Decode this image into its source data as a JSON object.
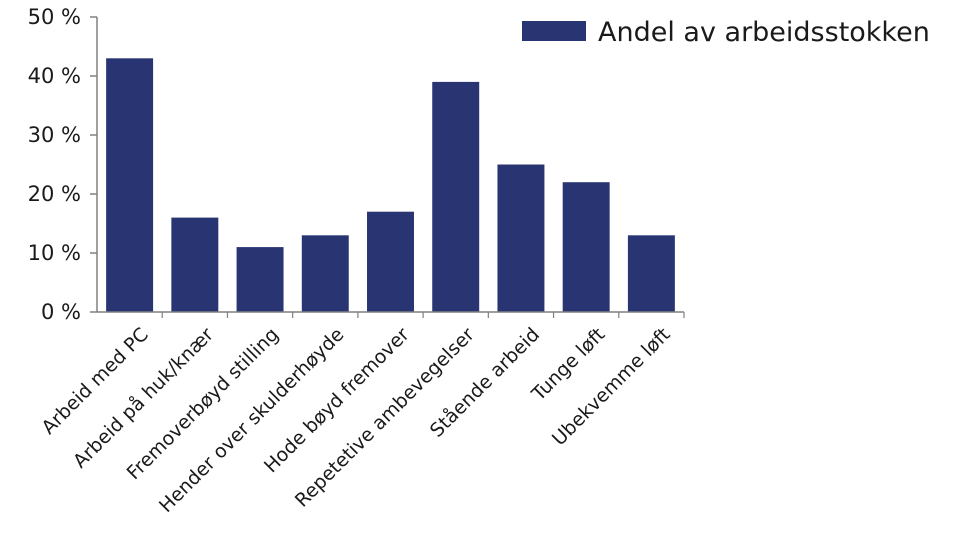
{
  "chart_data": {
    "type": "bar",
    "categories": [
      "Arbeid med PC",
      "Arbeid på huk/knær",
      "Fremoverbøyd stilling",
      "Hender over skulderhøyde",
      "Hode bøyd fremover",
      "Repetetive ambevegelser",
      "Stående arbeid",
      "Tunge løft",
      "Ubekvemme løft"
    ],
    "series": [
      {
        "name": "Andel av arbeidsstokken",
        "values": [
          43,
          16,
          11,
          13,
          17,
          39,
          25,
          22,
          13
        ]
      }
    ],
    "ylim": [
      0,
      50
    ],
    "yticks": [
      "0 %",
      "10 %",
      "20 %",
      "30 %",
      "40 %",
      "50 %"
    ],
    "title": "",
    "xlabel": "",
    "ylabel": "",
    "grid": false,
    "legend": "top-right",
    "bar_color": "#283572",
    "axis_color": "#808080"
  }
}
